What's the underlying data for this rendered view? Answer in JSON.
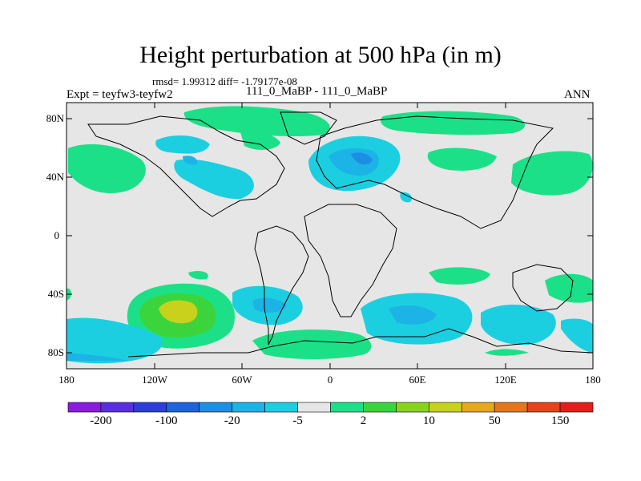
{
  "title": "Height perturbation at 500 hPa (in m)",
  "stats": "rmsd= 1.99312 diff= -1.79177e-08",
  "experiment": "Expt = teyfw3-teyfw2",
  "case_label": "111_0_MaBP - 111_0_MaBP",
  "season": "ANN",
  "lat_ticks": [
    "80N",
    "40N",
    "0",
    "40S",
    "80S"
  ],
  "lon_ticks": [
    "180",
    "120W",
    "60W",
    "0",
    "60E",
    "120E",
    "180"
  ],
  "colorbar": {
    "colors": [
      "#8a1ce0",
      "#5a2de0",
      "#2d3dd8",
      "#1c63dc",
      "#1c8ee4",
      "#1cb4e6",
      "#1ccfe0",
      "#e6e6e6",
      "#1ce088",
      "#3cd43c",
      "#88d41c",
      "#c8d21c",
      "#e6a81c",
      "#e6761c",
      "#e6421c",
      "#e61c1c"
    ],
    "labels": [
      "-200",
      "-100",
      "-20",
      "-5",
      "2",
      "10",
      "50",
      "150"
    ]
  },
  "colors": {
    "land_outline": "#000000",
    "background": "#e6e6e6"
  }
}
